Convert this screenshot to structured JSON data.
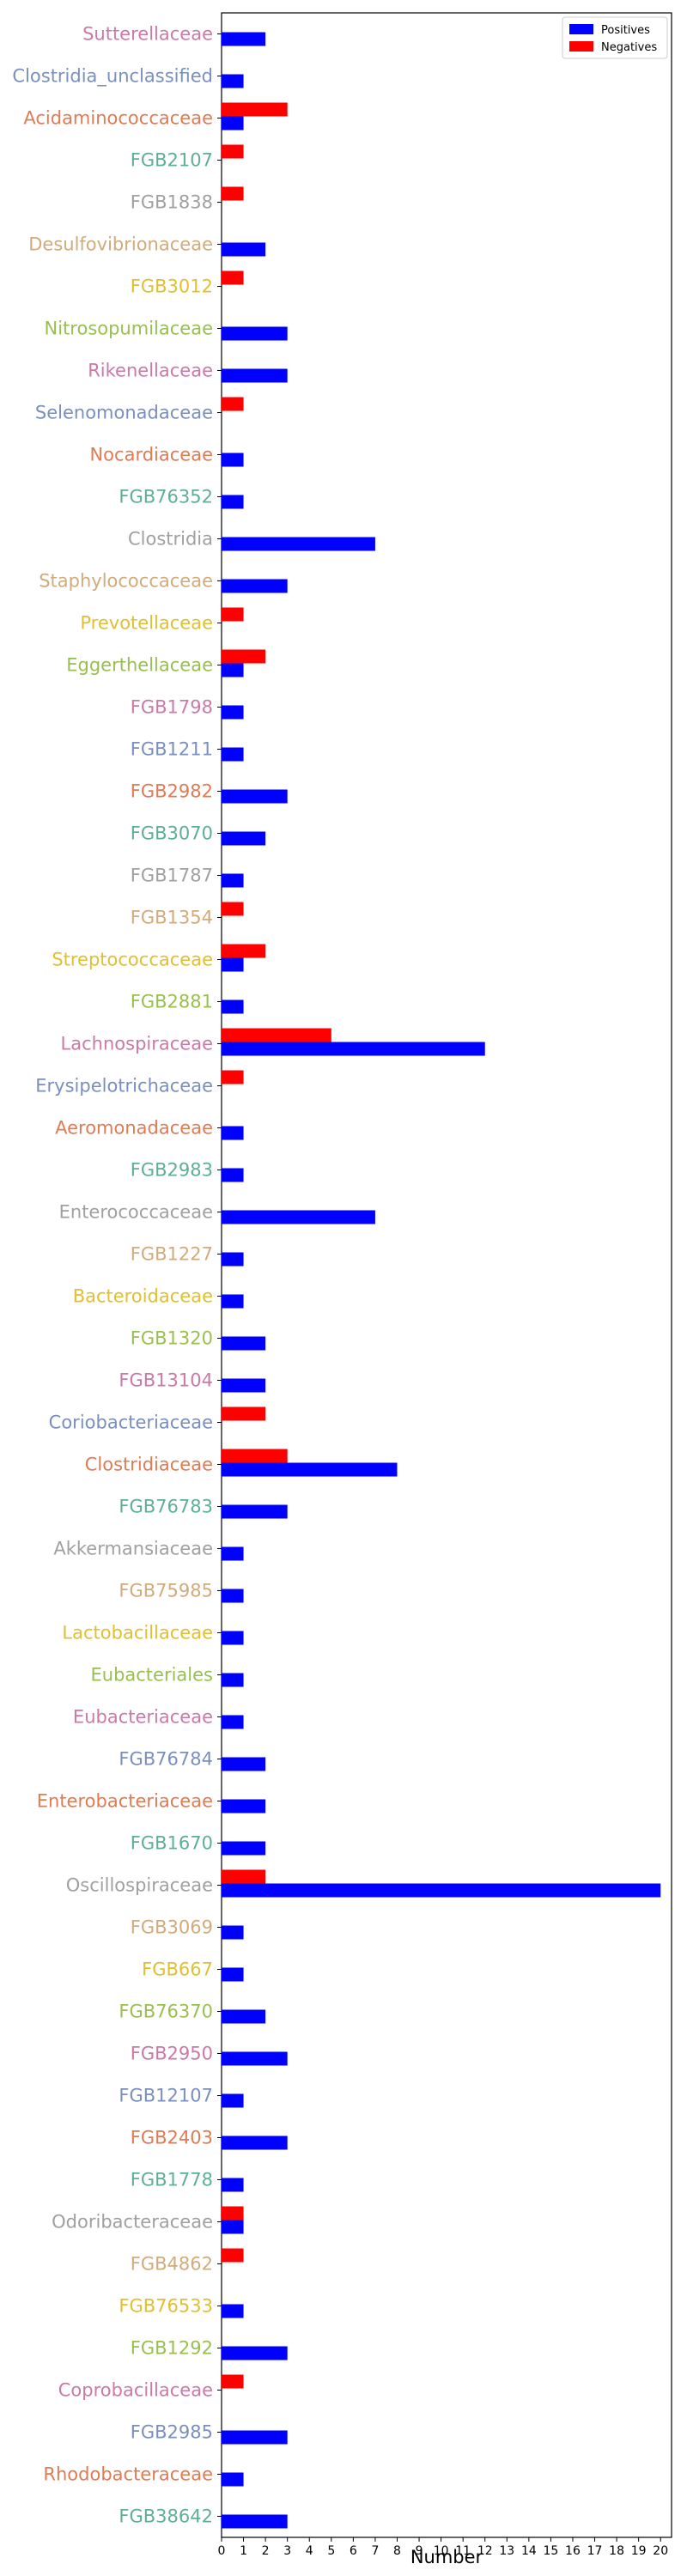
{
  "chart_data": {
    "type": "bar",
    "orientation": "horizontal",
    "xlabel": "Number",
    "ylabel": "",
    "title": "",
    "xlim": [
      0,
      20.5
    ],
    "xticks": [
      0,
      1,
      2,
      3,
      4,
      5,
      6,
      7,
      8,
      9,
      10,
      11,
      12,
      13,
      14,
      15,
      16,
      17,
      18,
      19,
      20
    ],
    "grid": false,
    "legend_position": "top-right",
    "label_colors": [
      "#cc79a7",
      "#7b8fbf",
      "#e07b54",
      "#5fae96",
      "#a0a0a0",
      "#d1ab7b",
      "#e0c030",
      "#99bf50"
    ],
    "categories": [
      "Sutterellaceae",
      "Clostridia_unclassified",
      "Acidaminococcaceae",
      "FGB2107",
      "FGB1838",
      "Desulfovibrionaceae",
      "FGB3012",
      "Nitrosopumilaceae",
      "Rikenellaceae",
      "Selenomonadaceae",
      "Nocardiaceae",
      "FGB76352",
      "Clostridia",
      "Staphylococcaceae",
      "Prevotellaceae",
      "Eggerthellaceae",
      "FGB1798",
      "FGB1211",
      "FGB2982",
      "FGB3070",
      "FGB1787",
      "FGB1354",
      "Streptococcaceae",
      "FGB2881",
      "Lachnospiraceae",
      "Erysipelotrichaceae",
      "Aeromonadaceae",
      "FGB2983",
      "Enterococcaceae",
      "FGB1227",
      "Bacteroidaceae",
      "FGB1320",
      "FGB13104",
      "Coriobacteriaceae",
      "Clostridiaceae",
      "FGB76783",
      "Akkermansiaceae",
      "FGB75985",
      "Lactobacillaceae",
      "Eubacteriales",
      "Eubacteriaceae",
      "FGB76784",
      "Enterobacteriaceae",
      "FGB1670",
      "Oscillospiraceae",
      "FGB3069",
      "FGB667",
      "FGB76370",
      "FGB2950",
      "FGB12107",
      "FGB2403",
      "FGB1778",
      "Odoribacteraceae",
      "FGB4862",
      "FGB76533",
      "FGB1292",
      "Coprobacillaceae",
      "FGB2985",
      "Rhodobacteraceae",
      "FGB38642"
    ],
    "series": [
      {
        "name": "Positives",
        "color": "#0000ff",
        "values": [
          2,
          1,
          1,
          0,
          0,
          2,
          0,
          3,
          3,
          0,
          1,
          1,
          7,
          3,
          0,
          1,
          1,
          1,
          3,
          2,
          1,
          0,
          1,
          1,
          12,
          0,
          1,
          1,
          7,
          1,
          1,
          2,
          2,
          0,
          8,
          3,
          1,
          1,
          1,
          1,
          1,
          2,
          2,
          2,
          20,
          1,
          1,
          2,
          3,
          1,
          3,
          1,
          1,
          0,
          1,
          3,
          0,
          3,
          1,
          3
        ]
      },
      {
        "name": "Negatives",
        "color": "#ff0000",
        "values": [
          0,
          0,
          3,
          1,
          1,
          0,
          1,
          0,
          0,
          1,
          0,
          0,
          0,
          0,
          1,
          2,
          0,
          0,
          0,
          0,
          0,
          1,
          2,
          0,
          5,
          1,
          0,
          0,
          0,
          0,
          0,
          0,
          0,
          2,
          3,
          0,
          0,
          0,
          0,
          0,
          0,
          0,
          0,
          0,
          2,
          0,
          0,
          0,
          0,
          0,
          0,
          0,
          1,
          1,
          0,
          0,
          1,
          0,
          0,
          0
        ]
      }
    ]
  }
}
